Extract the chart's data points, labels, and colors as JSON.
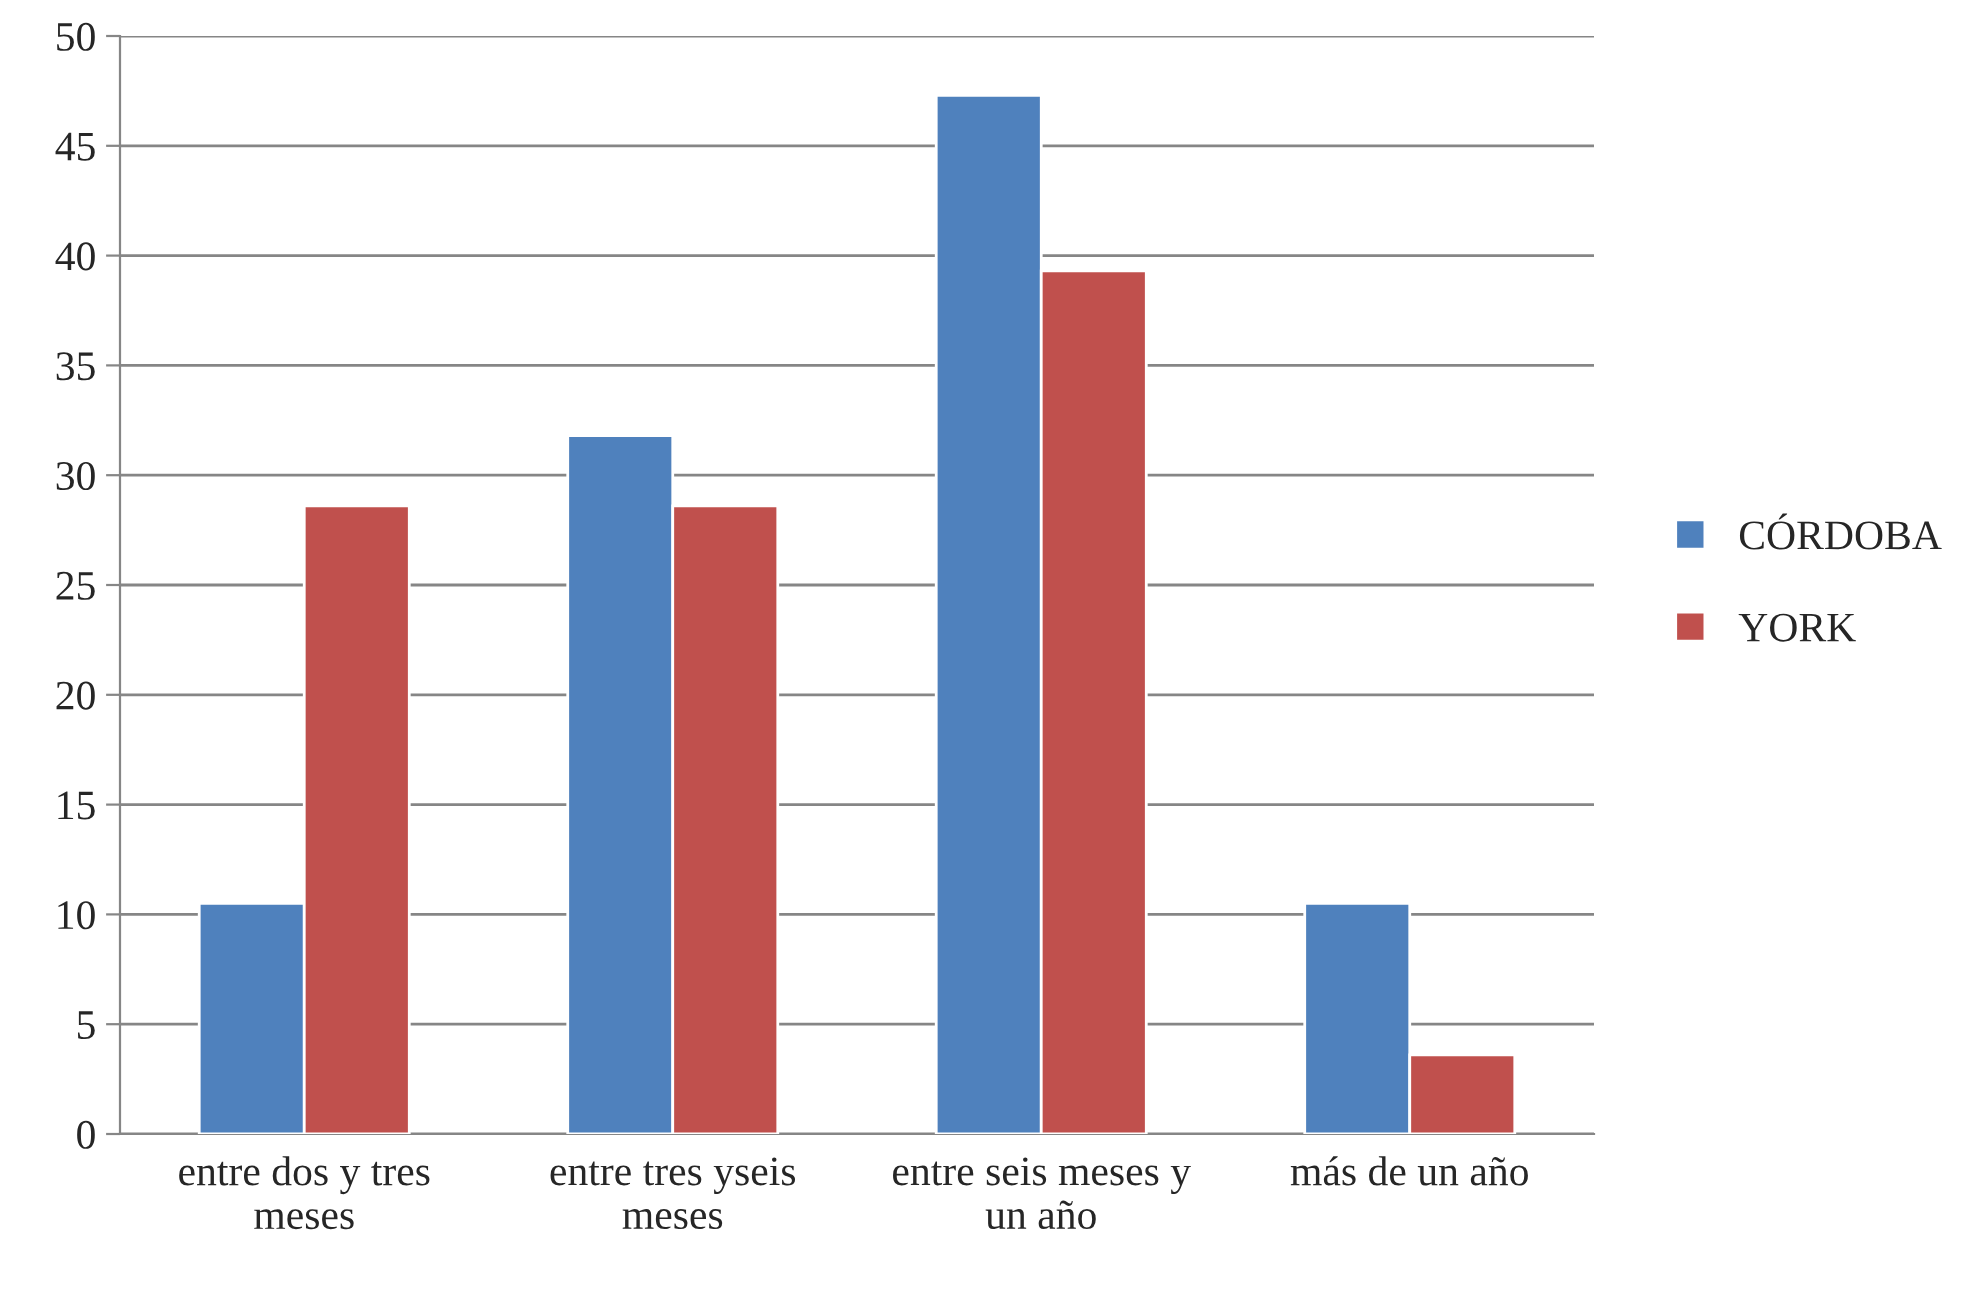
{
  "chart_data": {
    "type": "bar",
    "categories": [
      "entre dos y tres\nmeses",
      "entre tres yseis\nmeses",
      "entre seis meses y\nun año",
      "más de un año"
    ],
    "series": [
      {
        "name": "CÓRDOBA",
        "color": "#4f81bd",
        "values": [
          10.5,
          31.8,
          47.3,
          10.5
        ]
      },
      {
        "name": "YORK",
        "color": "#c0504d",
        "values": [
          28.6,
          28.6,
          39.3,
          3.6
        ]
      }
    ],
    "ylim": [
      0,
      50
    ],
    "yticks": [
      0,
      5,
      10,
      15,
      20,
      25,
      30,
      35,
      40,
      45,
      50
    ],
    "grid": "y",
    "legend": "right"
  }
}
